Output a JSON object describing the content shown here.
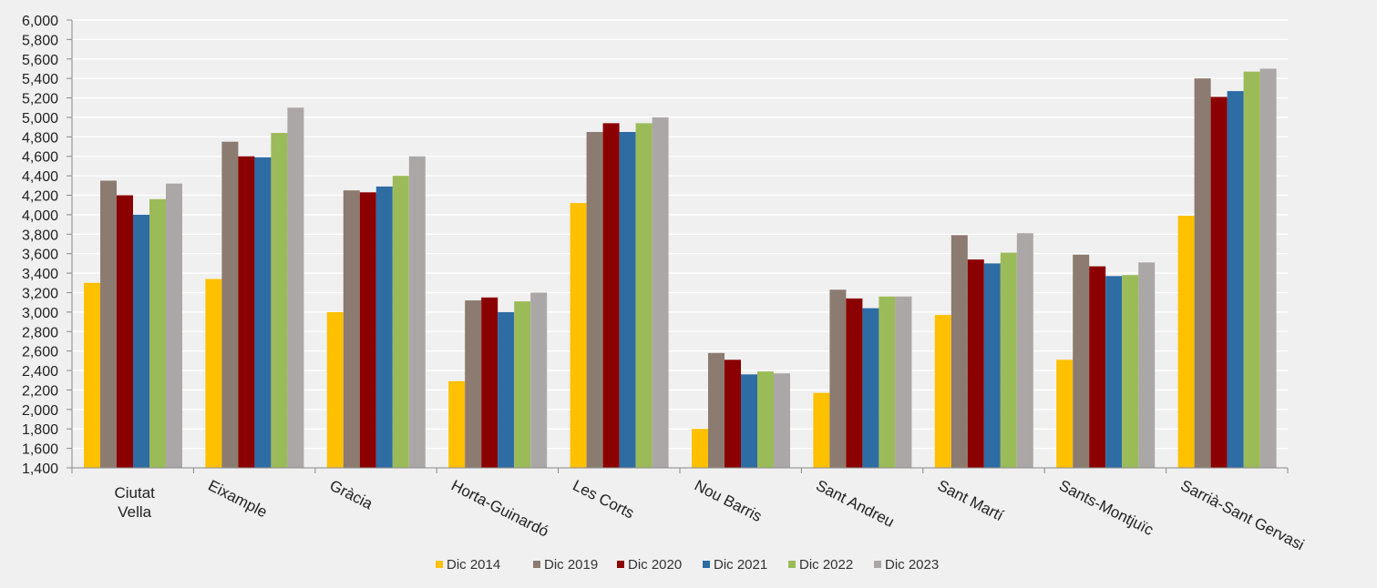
{
  "chart_data": {
    "type": "bar",
    "categories": [
      "Ciutat Vella",
      "Eixample",
      "Gràcia",
      "Horta-Guinardó",
      "Les Corts",
      "Nou Barris",
      "Sant Andreu",
      "Sant Martí",
      "Sants-Montjuïc",
      "Sarrià-Sant Gervasi"
    ],
    "series": [
      {
        "name": "Dic 2014",
        "color": "#ffc000",
        "values": [
          3300,
          3340,
          3000,
          2290,
          4120,
          1800,
          2170,
          2970,
          2510,
          3990
        ]
      },
      {
        "name": "Dic 2019",
        "color": "#8c7b70",
        "values": [
          4350,
          4750,
          4250,
          3120,
          4850,
          2580,
          3230,
          3790,
          3590,
          5400
        ]
      },
      {
        "name": "Dic 2020",
        "color": "#8b0000",
        "values": [
          4200,
          4600,
          4230,
          3150,
          4940,
          2510,
          3140,
          3540,
          3470,
          5210
        ]
      },
      {
        "name": "Dic 2021",
        "color": "#2e6ca4",
        "values": [
          4000,
          4590,
          4290,
          3000,
          4850,
          2360,
          3040,
          3500,
          3370,
          5270
        ]
      },
      {
        "name": "Dic 2022",
        "color": "#9bbb59",
        "values": [
          4160,
          4840,
          4400,
          3110,
          4940,
          2390,
          3160,
          3610,
          3380,
          5470
        ]
      },
      {
        "name": "Dic 2023",
        "color": "#aba7a6",
        "values": [
          4320,
          5100,
          4600,
          3200,
          5000,
          2370,
          3160,
          3810,
          3510,
          5500
        ]
      }
    ],
    "ylim": [
      1400,
      6000
    ],
    "yticks": [
      "1,400",
      "1,600",
      "1,800",
      "2,000",
      "2,200",
      "2,400",
      "2,600",
      "2,800",
      "3,000",
      "3,200",
      "3,400",
      "3,600",
      "3,800",
      "4,000",
      "4,200",
      "4,400",
      "4,600",
      "4,800",
      "5,000",
      "5,200",
      "5,400",
      "5,600",
      "5,800",
      "6,000"
    ],
    "ytick_values": [
      1400,
      1600,
      1800,
      2000,
      2200,
      2400,
      2600,
      2800,
      3000,
      3200,
      3400,
      3600,
      3800,
      4000,
      4200,
      4400,
      4600,
      4800,
      5000,
      5200,
      5400,
      5600,
      5800,
      6000
    ],
    "grid": true,
    "legend_position": "bottom"
  }
}
